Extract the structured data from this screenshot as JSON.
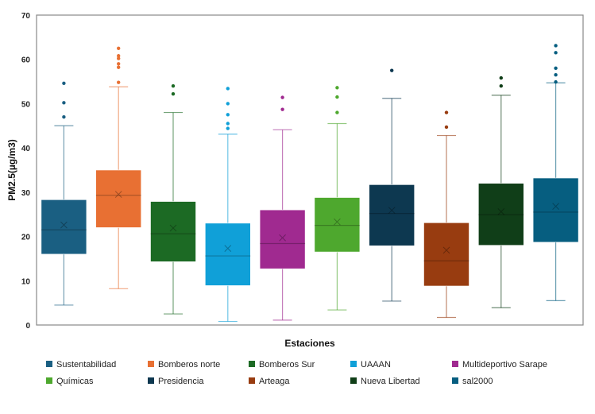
{
  "chart_data": {
    "type": "boxplot",
    "title": "",
    "xlabel": "Estaciones",
    "ylabel": "PM2.5(µg/m3)",
    "ylim": [
      0,
      70
    ],
    "yticks": [
      "0",
      "10",
      "20",
      "30",
      "40",
      "50",
      "60",
      "70"
    ],
    "grid": false,
    "legend_position": "bottom",
    "series": [
      {
        "name": "Sustentabilidad",
        "color": "#1a5f82",
        "min": 4.5,
        "q1": 16,
        "median": 21.5,
        "q3": 28.3,
        "max": 45,
        "mean": 22.6,
        "outliers": [
          47,
          50.2,
          54.6
        ]
      },
      {
        "name": "Bomberos norte",
        "color": "#e87033",
        "min": 8.2,
        "q1": 22,
        "median": 29.3,
        "q3": 35,
        "max": 53.8,
        "mean": 29.5,
        "outliers": [
          54.8,
          58.2,
          59,
          60.2,
          60.8,
          62.5
        ]
      },
      {
        "name": "Bomberos Sur",
        "color": "#1c6a24",
        "min": 2.5,
        "q1": 14.3,
        "median": 20.6,
        "q3": 27.9,
        "max": 48,
        "mean": 21.9,
        "outliers": [
          52.2,
          54
        ]
      },
      {
        "name": "UAAAN",
        "color": "#10a0d8",
        "min": 0.8,
        "q1": 8.9,
        "median": 15.6,
        "q3": 23,
        "max": 43.1,
        "mean": 17.3,
        "outliers": [
          44.4,
          45.5,
          47.5,
          50,
          53.4
        ]
      },
      {
        "name": "Multideportivo Sarape",
        "color": "#a02a90",
        "min": 1.1,
        "q1": 12.7,
        "median": 18.4,
        "q3": 26,
        "max": 44.1,
        "mean": 19.7,
        "outliers": [
          48.7,
          51.4
        ]
      },
      {
        "name": "Químicas",
        "color": "#4ea82e",
        "min": 3.4,
        "q1": 16.5,
        "median": 22.5,
        "q3": 28.8,
        "max": 45.5,
        "mean": 23.3,
        "outliers": [
          48,
          51.5,
          53.6
        ]
      },
      {
        "name": "Presidencia",
        "color": "#0d3850",
        "min": 5.4,
        "q1": 17.9,
        "median": 25.2,
        "q3": 31.7,
        "max": 51.2,
        "mean": 25.9,
        "outliers": [
          57.5
        ]
      },
      {
        "name": "Arteaga",
        "color": "#983c10",
        "min": 1.7,
        "q1": 8.8,
        "median": 14.5,
        "q3": 23.1,
        "max": 42.8,
        "mean": 16.9,
        "outliers": [
          44.7,
          48
        ]
      },
      {
        "name": "Nueva Libertad",
        "color": "#103e18",
        "min": 3.9,
        "q1": 18,
        "median": 24.9,
        "q3": 32,
        "max": 51.9,
        "mean": 25.6,
        "outliers": [
          54,
          55.8
        ]
      },
      {
        "name": "sal2000",
        "color": "#065e80",
        "min": 5.5,
        "q1": 18.7,
        "median": 25.5,
        "q3": 33.2,
        "max": 54.7,
        "mean": 26.8,
        "outliers": [
          54.9,
          56.5,
          58,
          61.5,
          63.1
        ]
      }
    ]
  }
}
